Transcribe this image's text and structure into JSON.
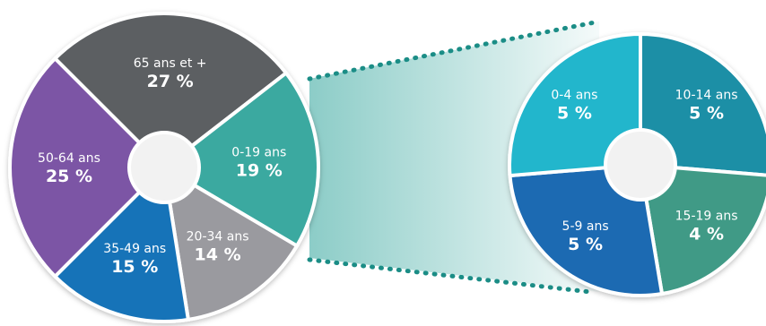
{
  "chart_data": [
    {
      "type": "pie",
      "categories": [
        "65 ans et +",
        "0-19 ans",
        "20-34 ans",
        "35-49 ans",
        "50-64 ans"
      ],
      "values": [
        27,
        19,
        14,
        15,
        25
      ],
      "value_labels": [
        "27 %",
        "19 %",
        "14 %",
        "15 %",
        "25 %"
      ],
      "colors": [
        "#5b5e62",
        "#3aa9a0",
        "#9a9a9f",
        "#1673b8",
        "#7b54a5"
      ]
    },
    {
      "type": "pie",
      "categories": [
        "10-14 ans",
        "15-19 ans",
        "5-9 ans",
        "0-4 ans"
      ],
      "values": [
        5,
        4,
        5,
        5
      ],
      "value_labels": [
        "5 %",
        "4 %",
        "5 %",
        "5 %"
      ],
      "colors": [
        "#1e8fa6",
        "#3f9a86",
        "#1f6ab2",
        "#21b6cc"
      ]
    }
  ]
}
